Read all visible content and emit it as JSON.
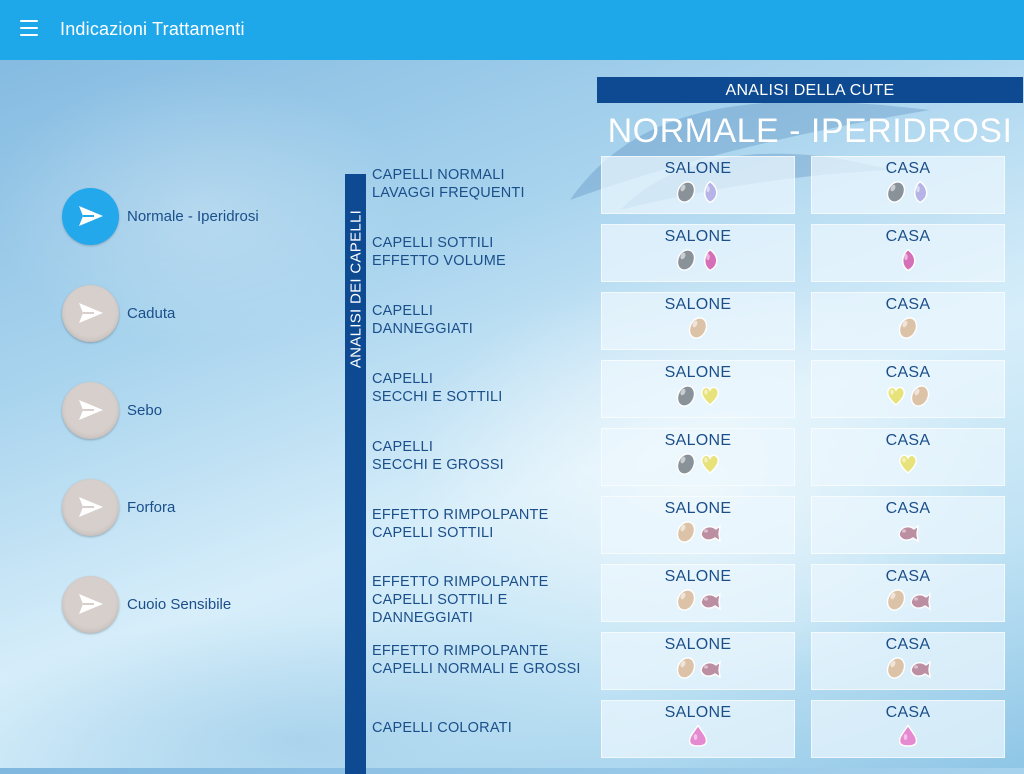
{
  "appbar": {
    "title": "Indicazioni Trattamenti"
  },
  "header": {
    "banner": "ANALISI DELLA CUTE",
    "title": "NORMALE - IPERIDROSI"
  },
  "sidebar_vertical_label": "ANALISI DEI CAPELLI",
  "categories": [
    {
      "label": "Normale - Iperidrosi",
      "active": true
    },
    {
      "label": "Caduta",
      "active": false
    },
    {
      "label": "Sebo",
      "active": false
    },
    {
      "label": "Forfora",
      "active": false
    },
    {
      "label": "Cuoio Sensibile",
      "active": false
    }
  ],
  "columns": {
    "salone": "SALONE",
    "casa": "CASA"
  },
  "colors": {
    "appbar": "#1ea8ea",
    "navy": "#0d4a92",
    "active": "#23a8ec",
    "inactive": "#d6cfcb",
    "grey": "#8a9299",
    "lavender": "#b6b4e6",
    "magenta": "#d46fb8",
    "peach": "#dcc3a8",
    "yellow": "#e8e27a",
    "mauve": "#bc8ea2",
    "pink": "#e58ad0"
  },
  "rows": [
    {
      "label": [
        "CAPELLI NORMALI",
        "LAVAGGI FREQUENTI"
      ],
      "salone": [
        [
          "oval",
          "grey"
        ],
        [
          "leaf",
          "lavender"
        ]
      ],
      "casa": [
        [
          "oval",
          "grey"
        ],
        [
          "leaf",
          "lavender"
        ]
      ]
    },
    {
      "label": [
        "CAPELLI SOTTILI",
        "EFFETTO VOLUME"
      ],
      "salone": [
        [
          "oval",
          "grey"
        ],
        [
          "leaf",
          "magenta"
        ]
      ],
      "casa": [
        [
          "leaf",
          "magenta"
        ]
      ]
    },
    {
      "label": [
        "CAPELLI",
        "DANNEGGIATI"
      ],
      "salone": [
        [
          "oval",
          "peach"
        ]
      ],
      "casa": [
        [
          "oval",
          "peach"
        ]
      ]
    },
    {
      "label": [
        "CAPELLI",
        "SECCHI E SOTTILI"
      ],
      "salone": [
        [
          "oval",
          "grey"
        ],
        [
          "heart",
          "yellow"
        ]
      ],
      "casa": [
        [
          "heart",
          "yellow"
        ],
        [
          "oval",
          "peach"
        ]
      ]
    },
    {
      "label": [
        "CAPELLI",
        "SECCHI E GROSSI"
      ],
      "salone": [
        [
          "oval",
          "grey"
        ],
        [
          "heart",
          "yellow"
        ]
      ],
      "casa": [
        [
          "heart",
          "yellow"
        ]
      ]
    },
    {
      "label": [
        "EFFETTO RIMPOLPANTE",
        "CAPELLI SOTTILI"
      ],
      "salone": [
        [
          "oval",
          "peach"
        ],
        [
          "fish",
          "mauve"
        ]
      ],
      "casa": [
        [
          "fish",
          "mauve"
        ]
      ]
    },
    {
      "label": [
        "EFFETTO RIMPOLPANTE",
        "CAPELLI SOTTILI E",
        "DANNEGGIATI"
      ],
      "salone": [
        [
          "oval",
          "peach"
        ],
        [
          "fish",
          "mauve"
        ]
      ],
      "casa": [
        [
          "oval",
          "peach"
        ],
        [
          "fish",
          "mauve"
        ]
      ]
    },
    {
      "label": [
        "EFFETTO RIMPOLPANTE",
        "CAPELLI NORMALI E GROSSI"
      ],
      "salone": [
        [
          "oval",
          "peach"
        ],
        [
          "fish",
          "mauve"
        ]
      ],
      "casa": [
        [
          "oval",
          "peach"
        ],
        [
          "fish",
          "mauve"
        ]
      ]
    },
    {
      "label": [
        "CAPELLI COLORATI"
      ],
      "salone": [
        [
          "drop",
          "pink"
        ]
      ],
      "casa": [
        [
          "drop",
          "pink"
        ]
      ]
    }
  ]
}
